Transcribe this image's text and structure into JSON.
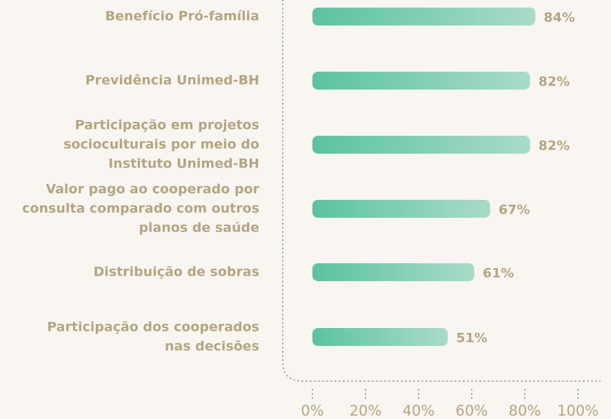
{
  "chart_data": {
    "type": "bar",
    "orientation": "horizontal",
    "categories": [
      [
        "Benefício Pró-família"
      ],
      [
        "Previdência Unimed-BH"
      ],
      [
        "Participação em projetos",
        "socioculturais por meio do",
        "Instituto Unimed-BH"
      ],
      [
        "Valor pago ao cooperado por",
        "consulta comparado com outros",
        "planos de saúde"
      ],
      [
        "Distribuição de sobras"
      ],
      [
        "Participação dos cooperados",
        "nas decisões"
      ]
    ],
    "values": [
      84,
      82,
      82,
      67,
      61,
      51
    ],
    "value_labels": [
      "84%",
      "82%",
      "82%",
      "67%",
      "61%",
      "51%"
    ],
    "color": [
      "#5bc3a1",
      "#aadbc9"
    ],
    "xlim": [
      0,
      100
    ],
    "xticks": [
      {
        "value": 0,
        "label": "0%"
      },
      {
        "value": 20,
        "label": "20%"
      },
      {
        "value": 40,
        "label": "40%"
      },
      {
        "value": 60,
        "label": "60%"
      },
      {
        "value": 80,
        "label": "80%"
      },
      {
        "value": 100,
        "label": "100%"
      }
    ]
  }
}
